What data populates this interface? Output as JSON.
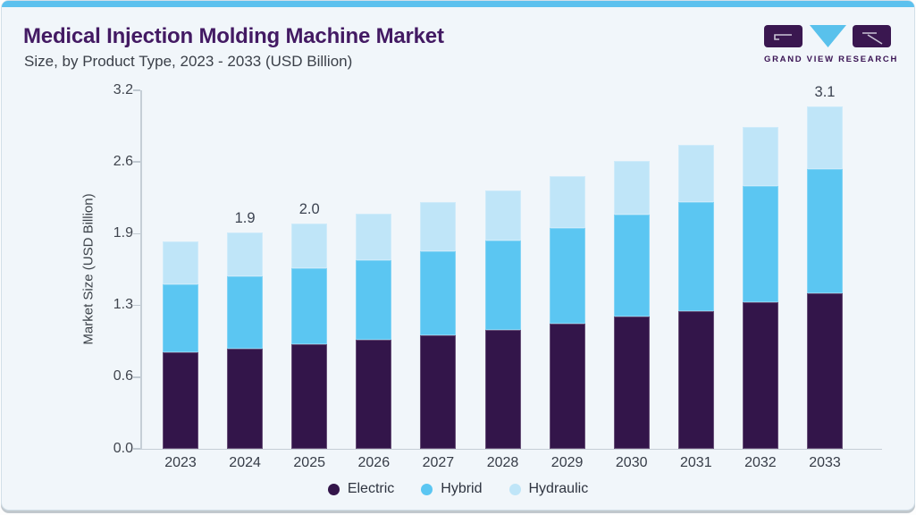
{
  "header": {
    "title": "Medical Injection Molding Machine Market",
    "subtitle": "Size, by Product Type, 2023 - 2033 (USD Billion)",
    "brand": "GRAND VIEW RESEARCH"
  },
  "colors": {
    "accent_bar": "#5cc1ee",
    "card_background": "#f1f6fa",
    "title_purple": "#431a63",
    "logo_dark": "#3a1750",
    "logo_triangle": "#59c1ec"
  },
  "chart_data": {
    "type": "bar",
    "stacked": true,
    "title": "Medical Injection Molding Machine Market Size, by Product Type, 2023 - 2033 (USD Billion)",
    "categories": [
      "2023",
      "2024",
      "2025",
      "2026",
      "2027",
      "2028",
      "2029",
      "2030",
      "2031",
      "2032",
      "2033"
    ],
    "series": [
      {
        "name": "Electric",
        "color": "#33154a",
        "values": [
          0.86,
          0.89,
          0.93,
          0.97,
          1.01,
          1.06,
          1.12,
          1.18,
          1.23,
          1.31,
          1.39
        ]
      },
      {
        "name": "Hybrid",
        "color": "#5bc6f2",
        "values": [
          0.61,
          0.65,
          0.68,
          0.71,
          0.75,
          0.8,
          0.85,
          0.91,
          0.97,
          1.04,
          1.11
        ]
      },
      {
        "name": "Hydraulic",
        "color": "#bfe5f8",
        "values": [
          0.38,
          0.39,
          0.4,
          0.42,
          0.44,
          0.45,
          0.46,
          0.48,
          0.51,
          0.52,
          0.56
        ]
      }
    ],
    "bar_total_labels": {
      "2024": "1.9",
      "2025": "2.0",
      "2033": "3.1"
    },
    "xlabel": "",
    "ylabel": "Market Size (USD Billion)",
    "ylim": [
      0,
      3.2
    ],
    "ytick_labels": [
      "0.0",
      "0.6",
      "1.3",
      "1.9",
      "2.6",
      "3.2"
    ],
    "grid": false,
    "legend_position": "bottom"
  }
}
